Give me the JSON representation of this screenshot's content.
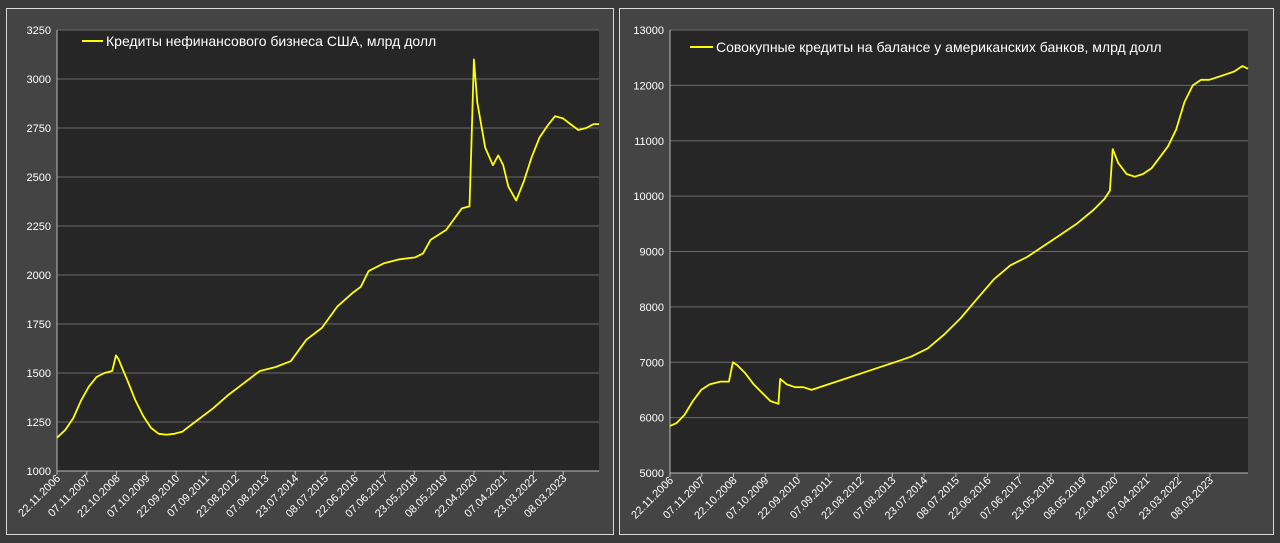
{
  "charts": {
    "colors": {
      "line": "#ffff00",
      "plot_bg": "#262626",
      "grid": "#6a6a6a",
      "text": "#ffffff",
      "panel_bg": "#444444"
    }
  },
  "chart_data": [
    {
      "type": "line",
      "title": "",
      "legend": "top-left",
      "grid": true,
      "ylim": [
        1000,
        3250
      ],
      "yticks": [
        1000,
        1250,
        1500,
        1750,
        2000,
        2250,
        2500,
        2750,
        3000,
        3250
      ],
      "xlim": [
        "2006-11-22",
        "2024-05-01"
      ],
      "xtick_labels": [
        "22.11.2006",
        "07.11.2007",
        "22.10.2008",
        "07.10.2009",
        "22.09.2010",
        "07.09.2011",
        "22.08.2012",
        "07.08.2013",
        "23.07.2014",
        "08.07.2015",
        "22.06.2016",
        "07.06.2017",
        "23.05.2018",
        "08.05.2019",
        "22.04.2020",
        "07.04.2021",
        "23.03.2022",
        "08.03.2023"
      ],
      "series": [
        {
          "name": "Кредиты нефинансового бизнеса США, млрд долл",
          "x": [
            "2006-11-22",
            "2007-03-01",
            "2007-06-01",
            "2007-09-01",
            "2007-12-01",
            "2008-03-01",
            "2008-06-01",
            "2008-09-01",
            "2008-10-15",
            "2008-11-15",
            "2009-01-01",
            "2009-03-01",
            "2009-06-01",
            "2009-09-01",
            "2009-12-01",
            "2010-03-01",
            "2010-06-01",
            "2010-09-01",
            "2010-12-01",
            "2011-06-01",
            "2011-12-01",
            "2012-06-01",
            "2012-12-01",
            "2013-06-01",
            "2013-12-01",
            "2014-06-01",
            "2014-12-01",
            "2015-06-01",
            "2015-12-01",
            "2016-06-01",
            "2016-09-01",
            "2016-12-01",
            "2017-06-01",
            "2017-12-01",
            "2018-06-01",
            "2018-09-01",
            "2018-12-01",
            "2019-06-01",
            "2019-12-01",
            "2020-03-01",
            "2020-03-25",
            "2020-04-22",
            "2020-06-01",
            "2020-09-01",
            "2020-12-01",
            "2021-02-01",
            "2021-04-01",
            "2021-06-01",
            "2021-09-01",
            "2021-12-01",
            "2022-03-01",
            "2022-06-01",
            "2022-09-01",
            "2022-12-01",
            "2023-03-01",
            "2023-06-01",
            "2023-09-01",
            "2023-12-01",
            "2024-03-01",
            "2024-05-01"
          ],
          "y": [
            1170,
            1210,
            1270,
            1360,
            1430,
            1480,
            1500,
            1510,
            1590,
            1570,
            1520,
            1460,
            1360,
            1280,
            1220,
            1190,
            1185,
            1190,
            1200,
            1260,
            1320,
            1390,
            1450,
            1510,
            1530,
            1560,
            1670,
            1730,
            1840,
            1910,
            1940,
            2020,
            2060,
            2080,
            2090,
            2110,
            2180,
            2230,
            2340,
            2350,
            2680,
            3100,
            2880,
            2650,
            2560,
            2610,
            2560,
            2450,
            2380,
            2480,
            2600,
            2700,
            2760,
            2810,
            2800,
            2770,
            2740,
            2750,
            2770,
            2770
          ]
        }
      ]
    },
    {
      "type": "line",
      "title": "",
      "legend": "top-left",
      "grid": true,
      "ylim": [
        5000,
        13000
      ],
      "yticks": [
        5000,
        6000,
        7000,
        8000,
        9000,
        10000,
        11000,
        12000,
        13000
      ],
      "xlim": [
        "2006-11-22",
        "2024-05-01"
      ],
      "xtick_labels": [
        "22.11.2006",
        "07.11.2007",
        "22.10.2008",
        "07.10.2009",
        "22.09.2010",
        "07.09.2011",
        "22.08.2012",
        "07.08.2013",
        "23.07.2014",
        "08.07.2015",
        "22.06.2016",
        "07.06.2017",
        "23.05.2018",
        "08.05.2019",
        "22.04.2020",
        "07.04.2021",
        "23.03.2022",
        "08.03.2023"
      ],
      "series": [
        {
          "name": "Совокупные кредиты на балансе у американских банков, млрд долл",
          "x": [
            "2006-11-22",
            "2007-02-01",
            "2007-05-01",
            "2007-08-01",
            "2007-11-01",
            "2008-02-01",
            "2008-06-01",
            "2008-09-01",
            "2008-10-15",
            "2008-12-01",
            "2009-03-01",
            "2009-06-01",
            "2009-09-01",
            "2009-12-01",
            "2010-03-01",
            "2010-03-20",
            "2010-06-01",
            "2010-09-01",
            "2010-12-01",
            "2011-03-01",
            "2011-09-01",
            "2012-03-01",
            "2012-09-01",
            "2013-03-01",
            "2013-09-01",
            "2014-03-01",
            "2014-09-01",
            "2015-03-01",
            "2015-09-01",
            "2016-03-01",
            "2016-09-01",
            "2017-03-01",
            "2017-09-01",
            "2018-03-01",
            "2018-09-01",
            "2019-03-01",
            "2019-09-01",
            "2020-01-01",
            "2020-03-01",
            "2020-04-01",
            "2020-06-01",
            "2020-09-01",
            "2020-12-01",
            "2021-03-01",
            "2021-06-01",
            "2021-09-01",
            "2021-12-01",
            "2022-03-01",
            "2022-06-01",
            "2022-09-01",
            "2022-12-01",
            "2023-03-01",
            "2023-06-01",
            "2023-09-01",
            "2023-12-01",
            "2024-03-01",
            "2024-05-01"
          ],
          "y": [
            5850,
            5900,
            6050,
            6300,
            6500,
            6600,
            6650,
            6650,
            7000,
            6950,
            6800,
            6600,
            6450,
            6300,
            6250,
            6700,
            6600,
            6550,
            6550,
            6500,
            6600,
            6700,
            6800,
            6900,
            7000,
            7100,
            7250,
            7500,
            7800,
            8150,
            8500,
            8750,
            8900,
            9100,
            9300,
            9500,
            9750,
            9950,
            10100,
            10850,
            10600,
            10400,
            10350,
            10400,
            10500,
            10700,
            10900,
            11200,
            11700,
            12000,
            12100,
            12100,
            12150,
            12200,
            12250,
            12350,
            12300
          ]
        }
      ]
    }
  ]
}
